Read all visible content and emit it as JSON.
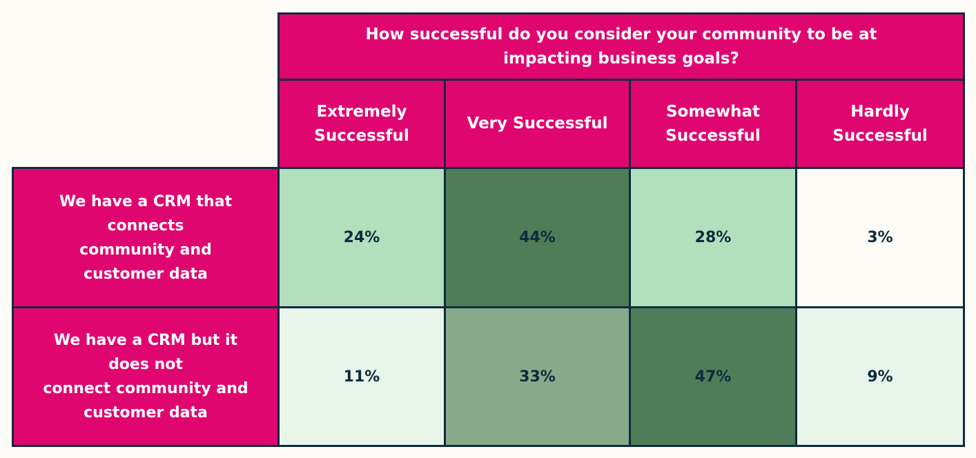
{
  "colors": {
    "header_bg": "#e0066f",
    "header_text": "#ffffff",
    "border": "#0f2a3c",
    "value_text": "#0f2a3c",
    "page_bg": "#fcfbf6"
  },
  "chart_data": {
    "type": "heatmap",
    "title": "How successful do you consider your community to be at impacting business goals?",
    "title_lines": [
      "How successful do you consider your community to be at",
      "impacting business goals?"
    ],
    "columns": [
      "Extremely Successful",
      "Very Successful",
      "Somewhat Successful",
      "Hardly Successful"
    ],
    "column_lines": [
      [
        "Extremely",
        "Successful"
      ],
      [
        "Very Successful"
      ],
      [
        "Somewhat",
        "Successful"
      ],
      [
        "Hardly",
        "Successful"
      ]
    ],
    "rows": [
      "We have a CRM that connects community and customer data",
      "We have a CRM but it does not connect community and customer data"
    ],
    "row_lines": [
      [
        "We have a CRM that",
        "connects",
        "community and",
        "customer data"
      ],
      [
        "We have a CRM but it",
        "does not",
        "connect community and",
        "customer data"
      ]
    ],
    "values": [
      [
        24,
        44,
        28,
        3
      ],
      [
        11,
        33,
        47,
        9
      ]
    ],
    "labels": [
      [
        "24%",
        "44%",
        "28%",
        "3%"
      ],
      [
        "11%",
        "33%",
        "47%",
        "9%"
      ]
    ],
    "cell_colors": [
      [
        "#b2dfbc",
        "#4f7d58",
        "#b2dfbc",
        "#fcfbf6"
      ],
      [
        "#e7f5ea",
        "#88aa8b",
        "#4f7d58",
        "#e7f5ea"
      ]
    ]
  }
}
